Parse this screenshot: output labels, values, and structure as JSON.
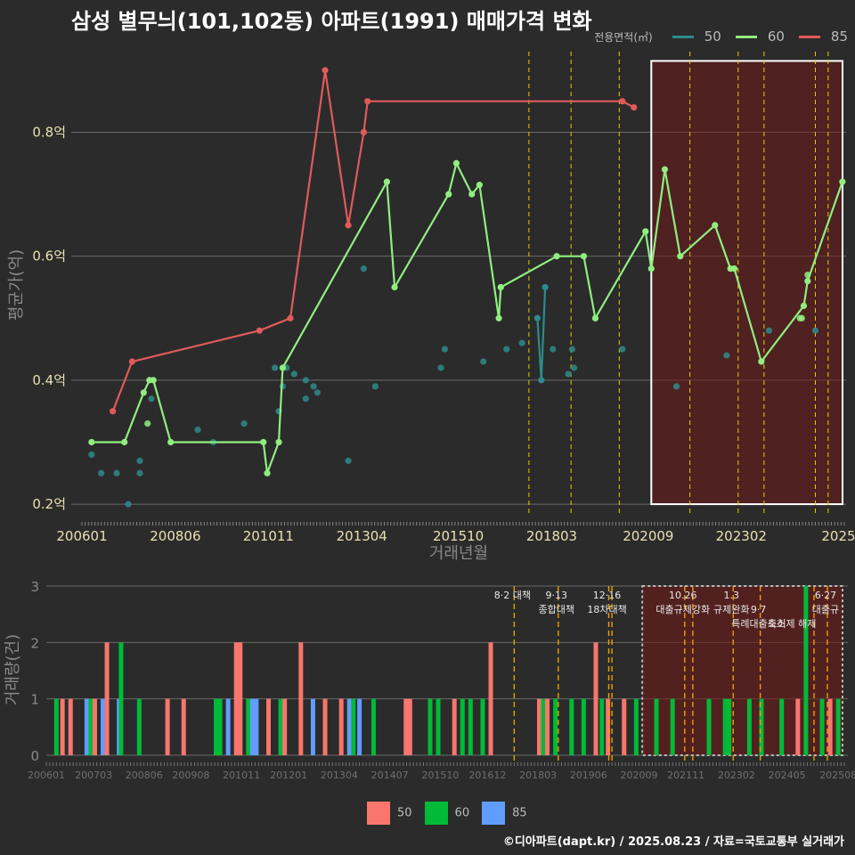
{
  "title": "삼성 별무늬(101,102동) 아파트(1991) 매매가격 변화",
  "legend": {
    "caption": "전용면적(㎡)",
    "items": [
      {
        "label": "50",
        "line_color": "#2e8b8b",
        "bar_color": "#f8766d"
      },
      {
        "label": "60",
        "line_color": "#90ee80",
        "bar_color": "#00ba38"
      },
      {
        "label": "85",
        "line_color": "#e05a5a",
        "bar_color": "#619cff"
      }
    ]
  },
  "chart_data": [
    {
      "type": "line",
      "title": "삼성 별무늬(101,102동) 아파트(1991) 매매가격 변화",
      "xlabel": "거래년월",
      "ylabel": "평균가(억)",
      "xlim": [
        2006.0,
        2025.75
      ],
      "ylim": [
        0.18,
        0.93
      ],
      "yticks": [
        0.2,
        0.4,
        0.6,
        0.8
      ],
      "ytick_labels": [
        "0.2억",
        "0.4억",
        "0.6억",
        "0.8억"
      ],
      "xtick_labels": [
        "200601",
        "200806",
        "201011",
        "201304",
        "201510",
        "201803",
        "202009",
        "202302",
        "2025"
      ],
      "xtick_values": [
        2006.0,
        2008.42,
        2010.83,
        2013.25,
        2015.75,
        2018.17,
        2020.67,
        2023.08,
        2025.6
      ],
      "vlines": [
        2017.58,
        2018.67,
        2019.92,
        2021.75,
        2023.0,
        2023.67,
        2025.0,
        2025.33
      ],
      "highlight_range": [
        2020.75,
        2025.75,
        0.2,
        0.915
      ],
      "series": [
        {
          "name": "50",
          "color": "#2e8b8b",
          "mode": "points",
          "points": [
            [
              2006.25,
              0.28
            ],
            [
              2006.5,
              0.25
            ],
            [
              2006.9,
              0.25
            ],
            [
              2007.2,
              0.2
            ],
            [
              2007.5,
              0.25
            ],
            [
              2007.5,
              0.27
            ],
            [
              2007.8,
              0.37
            ],
            [
              2009.0,
              0.32
            ],
            [
              2009.4,
              0.3
            ],
            [
              2010.2,
              0.33
            ],
            [
              2011.0,
              0.42
            ],
            [
              2011.1,
              0.35
            ],
            [
              2011.2,
              0.39
            ],
            [
              2011.3,
              0.42
            ],
            [
              2011.5,
              0.41
            ],
            [
              2011.8,
              0.4
            ],
            [
              2011.8,
              0.37
            ],
            [
              2012.0,
              0.39
            ],
            [
              2012.1,
              0.38
            ],
            [
              2012.9,
              0.27
            ],
            [
              2013.3,
              0.58
            ],
            [
              2013.6,
              0.39
            ],
            [
              2015.3,
              0.42
            ],
            [
              2015.4,
              0.45
            ],
            [
              2016.4,
              0.43
            ],
            [
              2017.0,
              0.45
            ],
            [
              2017.4,
              0.46
            ],
            [
              2018.2,
              0.45
            ],
            [
              2018.6,
              0.41
            ],
            [
              2018.7,
              0.45
            ],
            [
              2018.75,
              0.42
            ],
            [
              2019.3,
              0.5
            ],
            [
              2020.0,
              0.45
            ],
            [
              2021.4,
              0.39
            ],
            [
              2022.7,
              0.44
            ],
            [
              2023.8,
              0.48
            ],
            [
              2025.0,
              0.48
            ]
          ]
        },
        {
          "name": "50-line",
          "color": "#2e8b8b",
          "mode": "line",
          "points": [
            [
              2017.8,
              0.5
            ],
            [
              2017.9,
              0.4
            ],
            [
              2018.0,
              0.55
            ]
          ]
        },
        {
          "name": "60",
          "color": "#90ee80",
          "mode": "line",
          "points": [
            [
              2006.25,
              0.3
            ],
            [
              2007.1,
              0.3
            ],
            [
              2007.6,
              0.38
            ],
            [
              2007.75,
              0.4
            ],
            [
              2007.85,
              0.4
            ],
            [
              2008.3,
              0.3
            ],
            [
              2010.7,
              0.3
            ],
            [
              2010.8,
              0.25
            ],
            [
              2011.1,
              0.3
            ],
            [
              2011.2,
              0.42
            ],
            [
              2013.9,
              0.72
            ],
            [
              2014.1,
              0.55
            ],
            [
              2015.5,
              0.7
            ],
            [
              2015.7,
              0.75
            ],
            [
              2016.1,
              0.7
            ],
            [
              2016.3,
              0.715
            ],
            [
              2016.8,
              0.5
            ],
            [
              2016.85,
              0.55
            ],
            [
              2018.3,
              0.6
            ],
            [
              2019.0,
              0.6
            ],
            [
              2019.3,
              0.5
            ],
            [
              2020.6,
              0.64
            ],
            [
              2020.75,
              0.58
            ],
            [
              2021.1,
              0.74
            ],
            [
              2021.5,
              0.6
            ],
            [
              2022.4,
              0.65
            ],
            [
              2022.8,
              0.58
            ],
            [
              2022.9,
              0.58
            ],
            [
              2023.6,
              0.43
            ],
            [
              2024.7,
              0.52
            ],
            [
              2024.8,
              0.56
            ],
            [
              2025.7,
              0.72
            ]
          ]
        },
        {
          "name": "60-extra",
          "color": "#90ee80",
          "mode": "points",
          "points": [
            [
              2007.7,
              0.33
            ],
            [
              2024.6,
              0.5
            ],
            [
              2024.65,
              0.5
            ],
            [
              2024.8,
              0.57
            ]
          ]
        },
        {
          "name": "85",
          "color": "#e05a5a",
          "mode": "line",
          "points": [
            [
              2006.8,
              0.35
            ],
            [
              2007.3,
              0.43
            ],
            [
              2010.6,
              0.48
            ],
            [
              2011.4,
              0.5
            ],
            [
              2012.3,
              0.9
            ],
            [
              2012.9,
              0.65
            ],
            [
              2013.3,
              0.8
            ],
            [
              2013.4,
              0.85
            ],
            [
              2020.0,
              0.85
            ],
            [
              2020.3,
              0.84
            ]
          ]
        }
      ]
    },
    {
      "type": "bar",
      "xlabel": "",
      "ylabel": "거래량(건)",
      "xlim": [
        2006.0,
        2025.75
      ],
      "ylim": [
        0,
        3
      ],
      "yticks": [
        0,
        1,
        2,
        3
      ],
      "xtick_labels": [
        "200601",
        "200703",
        "200806",
        "200908",
        "201011",
        "201201",
        "201304",
        "201407",
        "201510",
        "201612",
        "201803",
        "201906",
        "202009",
        "202111",
        "202302",
        "202405",
        "202508"
      ],
      "xtick_values": [
        2006.0,
        2007.17,
        2008.42,
        2009.58,
        2010.83,
        2012.0,
        2013.25,
        2014.5,
        2015.75,
        2016.92,
        2018.17,
        2019.42,
        2020.67,
        2021.83,
        2023.08,
        2024.33,
        2025.6
      ],
      "highlight_range": [
        2020.75,
        2025.75
      ],
      "policy_lines": [
        2017.58,
        2018.67,
        2019.92,
        2020.0,
        2021.8,
        2022.0,
        2023.0,
        2023.67,
        2025.0,
        2025.33
      ],
      "bars": [
        {
          "x": 2006.25,
          "v": 1,
          "s": "60"
        },
        {
          "x": 2006.4,
          "v": 1,
          "s": "50"
        },
        {
          "x": 2006.6,
          "v": 1,
          "s": "50"
        },
        {
          "x": 2007.0,
          "v": 1,
          "s": "85"
        },
        {
          "x": 2007.1,
          "v": 1,
          "s": "60"
        },
        {
          "x": 2007.2,
          "v": 1,
          "s": "50"
        },
        {
          "x": 2007.4,
          "v": 1,
          "s": "85"
        },
        {
          "x": 2007.5,
          "v": 2,
          "s": "50"
        },
        {
          "x": 2007.8,
          "v": 1,
          "s": "85"
        },
        {
          "x": 2007.85,
          "v": 2,
          "s": "60"
        },
        {
          "x": 2008.3,
          "v": 1,
          "s": "60"
        },
        {
          "x": 2009.0,
          "v": 1,
          "s": "50"
        },
        {
          "x": 2009.4,
          "v": 1,
          "s": "50"
        },
        {
          "x": 2010.2,
          "v": 1,
          "s": "60"
        },
        {
          "x": 2010.3,
          "v": 1,
          "s": "60"
        },
        {
          "x": 2010.5,
          "v": 1,
          "s": "85"
        },
        {
          "x": 2010.7,
          "v": 2,
          "s": "50"
        },
        {
          "x": 2010.8,
          "v": 2,
          "s": "50"
        },
        {
          "x": 2011.0,
          "v": 1,
          "s": "60"
        },
        {
          "x": 2011.1,
          "v": 1,
          "s": "85"
        },
        {
          "x": 2011.2,
          "v": 1,
          "s": "85"
        },
        {
          "x": 2011.5,
          "v": 1,
          "s": "50"
        },
        {
          "x": 2011.8,
          "v": 1,
          "s": "60"
        },
        {
          "x": 2011.9,
          "v": 1,
          "s": "50"
        },
        {
          "x": 2012.3,
          "v": 2,
          "s": "50"
        },
        {
          "x": 2012.6,
          "v": 1,
          "s": "85"
        },
        {
          "x": 2012.9,
          "v": 1,
          "s": "50"
        },
        {
          "x": 2013.3,
          "v": 1,
          "s": "50"
        },
        {
          "x": 2013.5,
          "v": 1,
          "s": "85"
        },
        {
          "x": 2013.6,
          "v": 1,
          "s": "60"
        },
        {
          "x": 2013.75,
          "v": 1,
          "s": "85"
        },
        {
          "x": 2014.1,
          "v": 1,
          "s": "60"
        },
        {
          "x": 2014.9,
          "v": 1,
          "s": "50"
        },
        {
          "x": 2015.0,
          "v": 1,
          "s": "50"
        },
        {
          "x": 2015.5,
          "v": 1,
          "s": "60"
        },
        {
          "x": 2015.7,
          "v": 1,
          "s": "60"
        },
        {
          "x": 2016.1,
          "v": 1,
          "s": "50"
        },
        {
          "x": 2016.3,
          "v": 1,
          "s": "60"
        },
        {
          "x": 2016.5,
          "v": 1,
          "s": "60"
        },
        {
          "x": 2016.8,
          "v": 1,
          "s": "60"
        },
        {
          "x": 2017.0,
          "v": 2,
          "s": "50"
        },
        {
          "x": 2018.2,
          "v": 1,
          "s": "50"
        },
        {
          "x": 2018.3,
          "v": 1,
          "s": "60"
        },
        {
          "x": 2018.4,
          "v": 1,
          "s": "50"
        },
        {
          "x": 2018.6,
          "v": 1,
          "s": "60"
        },
        {
          "x": 2019.0,
          "v": 1,
          "s": "60"
        },
        {
          "x": 2019.3,
          "v": 1,
          "s": "60"
        },
        {
          "x": 2019.6,
          "v": 2,
          "s": "50"
        },
        {
          "x": 2019.75,
          "v": 1,
          "s": "60"
        },
        {
          "x": 2019.9,
          "v": 1,
          "s": "50"
        },
        {
          "x": 2020.3,
          "v": 1,
          "s": "50"
        },
        {
          "x": 2020.6,
          "v": 1,
          "s": "60"
        },
        {
          "x": 2021.1,
          "v": 1,
          "s": "60"
        },
        {
          "x": 2021.5,
          "v": 1,
          "s": "60"
        },
        {
          "x": 2022.4,
          "v": 1,
          "s": "60"
        },
        {
          "x": 2022.8,
          "v": 1,
          "s": "60"
        },
        {
          "x": 2022.9,
          "v": 1,
          "s": "60"
        },
        {
          "x": 2023.4,
          "v": 1,
          "s": "60"
        },
        {
          "x": 2023.7,
          "v": 1,
          "s": "60"
        },
        {
          "x": 2024.2,
          "v": 1,
          "s": "60"
        },
        {
          "x": 2024.6,
          "v": 1,
          "s": "50"
        },
        {
          "x": 2024.8,
          "v": 3,
          "s": "60"
        },
        {
          "x": 2025.2,
          "v": 1,
          "s": "60"
        },
        {
          "x": 2025.4,
          "v": 1,
          "s": "50"
        },
        {
          "x": 2025.6,
          "v": 1,
          "s": "60"
        }
      ],
      "annotations": [
        {
          "x": 2017.58,
          "lines": [
            "8·2 대책"
          ]
        },
        {
          "x": 2018.67,
          "lines": [
            "9·13",
            "종합대책"
          ]
        },
        {
          "x": 2019.92,
          "lines": [
            "12·16",
            "18차대책"
          ]
        },
        {
          "x": 2021.8,
          "lines": [
            "10.26",
            "대출규제강화"
          ]
        },
        {
          "x": 2023.0,
          "lines": [
            "1.3",
            "규제완화"
          ]
        },
        {
          "x": 2023.67,
          "lines": [
            "",
            "9·7",
            "특례대출축소"
          ]
        },
        {
          "x": 2024.5,
          "lines": [
            "",
            "",
            "토허제 해제"
          ]
        },
        {
          "x": 2025.33,
          "lines": [
            "6·27",
            "대출규"
          ]
        }
      ]
    }
  ],
  "credit": "©디아파트(dapt.kr) / 2025.08.23 / 자료=국토교통부 실거래가"
}
